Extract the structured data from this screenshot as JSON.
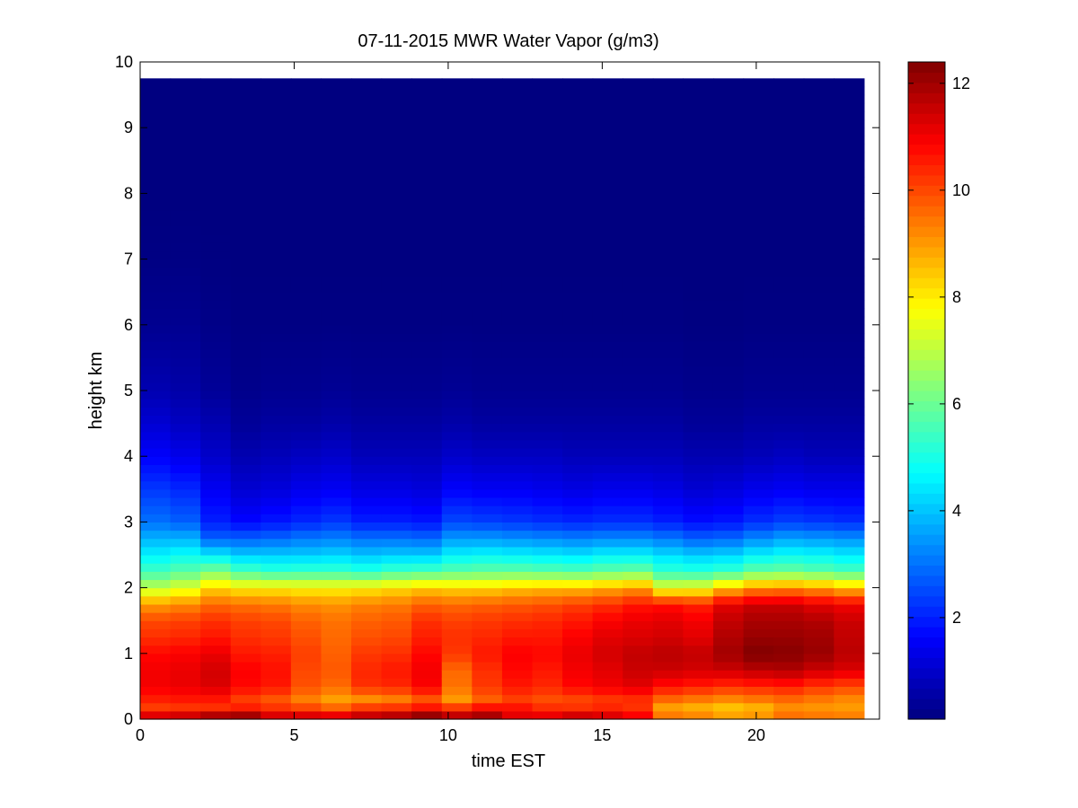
{
  "chart_data": {
    "type": "heatmap",
    "title": "07-11-2015 MWR Water Vapor (g/m3)",
    "xlabel": "time EST",
    "ylabel": "height km",
    "xlim": [
      0,
      24
    ],
    "ylim": [
      0,
      10
    ],
    "xticks": [
      0,
      5,
      10,
      15,
      20
    ],
    "yticks": [
      0,
      1,
      2,
      3,
      4,
      5,
      6,
      7,
      8,
      9,
      10
    ],
    "colorbar": {
      "colormap": "jet",
      "range": [
        0.1,
        12.4
      ],
      "ticks": [
        2,
        4,
        6,
        8,
        10,
        12
      ]
    },
    "grid": false,
    "time_cells": {
      "start": 0,
      "end": 23.5,
      "count": 24
    },
    "data_top_km": 9.75,
    "profile_levels_km": [
      0.0,
      0.1,
      0.2,
      0.3,
      0.5,
      0.75,
      1.0,
      1.25,
      1.5,
      1.75,
      2.0,
      2.25,
      2.5,
      2.75,
      3.0,
      3.5,
      4.0,
      4.5,
      5.0,
      6.0,
      7.0,
      8.0,
      9.0,
      9.75
    ],
    "profiles_g_m3": [
      [
        11.2,
        11.2,
        10.0,
        10.5,
        11.0,
        11.0,
        10.8,
        10.3,
        10.0,
        9.0,
        7.0,
        5.5,
        4.6,
        3.8,
        3.0,
        2.3,
        1.6,
        1.1,
        0.7,
        0.3,
        0.15,
        0.1,
        0.1,
        0.1
      ],
      [
        11.3,
        11.4,
        10.1,
        10.6,
        11.1,
        11.1,
        10.9,
        10.4,
        10.1,
        9.2,
        7.4,
        5.8,
        4.8,
        3.8,
        2.8,
        2.1,
        1.4,
        0.9,
        0.6,
        0.3,
        0.15,
        0.1,
        0.1,
        0.1
      ],
      [
        11.7,
        11.8,
        10.1,
        10.6,
        11.3,
        11.4,
        11.1,
        10.6,
        10.3,
        9.6,
        8.3,
        6.2,
        4.5,
        2.8,
        2.0,
        1.5,
        1.0,
        0.7,
        0.4,
        0.2,
        0.12,
        0.1,
        0.1,
        0.1
      ],
      [
        12.0,
        11.9,
        10.3,
        10.1,
        10.8,
        10.9,
        10.6,
        10.3,
        10.1,
        9.5,
        8.0,
        5.6,
        4.1,
        2.8,
        1.7,
        1.1,
        0.7,
        0.4,
        0.25,
        0.15,
        0.1,
        0.1,
        0.1,
        0.1
      ],
      [
        11.4,
        11.2,
        10.1,
        9.8,
        10.6,
        10.7,
        10.5,
        10.2,
        10.0,
        9.4,
        8.0,
        5.3,
        4.1,
        2.9,
        1.9,
        1.2,
        0.8,
        0.5,
        0.3,
        0.15,
        0.1,
        0.1,
        0.1,
        0.1
      ],
      [
        11.3,
        11.2,
        9.8,
        9.3,
        9.9,
        10.0,
        10.1,
        9.9,
        9.7,
        9.2,
        7.9,
        5.4,
        4.1,
        3.1,
        2.1,
        1.4,
        0.9,
        0.5,
        0.3,
        0.15,
        0.1,
        0.1,
        0.1,
        0.1
      ],
      [
        11.2,
        11.0,
        9.4,
        8.9,
        9.6,
        9.8,
        9.7,
        9.6,
        9.5,
        9.1,
        7.9,
        5.4,
        4.2,
        3.2,
        2.3,
        1.5,
        1.0,
        0.6,
        0.35,
        0.15,
        0.1,
        0.1,
        0.1,
        0.1
      ],
      [
        11.6,
        11.4,
        9.9,
        9.1,
        10.3,
        10.4,
        10.2,
        9.9,
        9.7,
        9.3,
        8.0,
        5.2,
        4.0,
        3.0,
        2.0,
        1.3,
        0.8,
        0.5,
        0.3,
        0.15,
        0.1,
        0.1,
        0.1,
        0.1
      ],
      [
        11.8,
        11.6,
        10.0,
        9.3,
        10.4,
        10.6,
        10.3,
        10.0,
        9.8,
        9.4,
        8.2,
        5.5,
        4.1,
        3.0,
        2.0,
        1.3,
        0.8,
        0.5,
        0.3,
        0.15,
        0.1,
        0.1,
        0.1,
        0.1
      ],
      [
        12.2,
        12.0,
        10.4,
        9.8,
        10.9,
        11.0,
        10.8,
        10.5,
        10.3,
        9.7,
        8.4,
        5.6,
        4.1,
        2.9,
        1.9,
        1.2,
        0.8,
        0.5,
        0.3,
        0.15,
        0.1,
        0.1,
        0.1,
        0.1
      ],
      [
        11.7,
        11.5,
        9.9,
        9.0,
        9.5,
        9.6,
        10.2,
        10.3,
        10.1,
        9.6,
        8.3,
        5.8,
        4.6,
        3.5,
        2.5,
        1.6,
        1.0,
        0.6,
        0.35,
        0.15,
        0.1,
        0.1,
        0.1,
        0.1
      ],
      [
        12.0,
        11.8,
        10.5,
        9.7,
        10.2,
        10.3,
        10.6,
        10.4,
        10.2,
        9.7,
        8.3,
        5.9,
        4.7,
        3.5,
        2.4,
        1.5,
        0.9,
        0.5,
        0.3,
        0.15,
        0.1,
        0.1,
        0.1,
        0.1
      ],
      [
        11.4,
        11.0,
        10.6,
        10.1,
        10.6,
        10.8,
        10.9,
        10.6,
        10.3,
        9.8,
        8.5,
        5.9,
        4.6,
        3.4,
        2.3,
        1.5,
        0.9,
        0.5,
        0.3,
        0.15,
        0.1,
        0.1,
        0.1,
        0.1
      ],
      [
        11.2,
        11.0,
        10.2,
        9.9,
        10.4,
        10.6,
        10.8,
        10.6,
        10.4,
        9.9,
        8.6,
        5.8,
        4.5,
        3.3,
        2.2,
        1.4,
        0.9,
        0.5,
        0.3,
        0.15,
        0.1,
        0.1,
        0.1,
        0.1
      ],
      [
        11.5,
        11.3,
        10.1,
        10.0,
        10.8,
        11.0,
        11.1,
        10.9,
        10.6,
        10.1,
        8.6,
        5.7,
        4.4,
        3.2,
        2.1,
        1.3,
        0.8,
        0.5,
        0.3,
        0.15,
        0.1,
        0.1,
        0.1,
        0.1
      ],
      [
        11.3,
        11.2,
        10.3,
        10.2,
        11.0,
        11.2,
        11.4,
        11.2,
        10.9,
        10.3,
        8.8,
        5.9,
        4.6,
        3.3,
        2.2,
        1.4,
        0.8,
        0.5,
        0.3,
        0.15,
        0.1,
        0.1,
        0.1,
        0.1
      ],
      [
        11.0,
        10.8,
        10.2,
        10.3,
        11.2,
        11.5,
        11.6,
        11.3,
        11.1,
        10.6,
        9.0,
        6.0,
        4.6,
        3.3,
        2.2,
        1.4,
        0.8,
        0.5,
        0.3,
        0.15,
        0.1,
        0.1,
        0.1,
        0.1
      ],
      [
        10.3,
        8.8,
        9.0,
        9.6,
        10.7,
        11.5,
        11.7,
        11.4,
        11.2,
        10.7,
        7.5,
        5.3,
        4.3,
        3.1,
        2.0,
        1.3,
        0.8,
        0.5,
        0.3,
        0.15,
        0.1,
        0.1,
        0.1,
        0.1
      ],
      [
        10.2,
        8.6,
        8.8,
        9.4,
        10.5,
        11.4,
        11.6,
        11.2,
        11.0,
        10.5,
        7.6,
        5.2,
        4.1,
        2.8,
        1.8,
        1.1,
        0.7,
        0.4,
        0.25,
        0.12,
        0.1,
        0.1,
        0.1,
        0.1
      ],
      [
        10.0,
        8.2,
        8.6,
        9.2,
        10.3,
        11.5,
        12.0,
        11.8,
        11.6,
        11.2,
        8.5,
        5.4,
        4.2,
        2.9,
        1.9,
        1.2,
        0.7,
        0.4,
        0.25,
        0.12,
        0.1,
        0.1,
        0.1,
        0.1
      ],
      [
        10.0,
        8.4,
        8.8,
        9.4,
        10.4,
        11.7,
        12.4,
        12.1,
        11.9,
        11.5,
        9.1,
        5.9,
        4.6,
        3.3,
        2.2,
        1.4,
        0.8,
        0.5,
        0.3,
        0.15,
        0.1,
        0.1,
        0.1,
        0.1
      ],
      [
        10.3,
        9.0,
        9.2,
        9.6,
        10.5,
        11.8,
        12.3,
        12.1,
        11.9,
        11.5,
        9.2,
        6.0,
        4.8,
        3.6,
        2.4,
        1.5,
        0.9,
        0.5,
        0.3,
        0.15,
        0.1,
        0.1,
        0.1,
        0.1
      ],
      [
        10.0,
        9.0,
        9.1,
        9.4,
        10.2,
        11.5,
        12.1,
        12.0,
        11.8,
        11.2,
        9.0,
        5.8,
        4.7,
        3.5,
        2.3,
        1.4,
        0.8,
        0.5,
        0.3,
        0.15,
        0.1,
        0.1,
        0.1,
        0.1
      ],
      [
        9.8,
        9.0,
        9.0,
        9.2,
        10.0,
        11.3,
        11.7,
        11.6,
        11.5,
        11.0,
        8.6,
        5.6,
        4.5,
        3.4,
        2.2,
        1.4,
        0.8,
        0.5,
        0.3,
        0.15,
        0.1,
        0.1,
        0.1,
        0.1
      ]
    ]
  }
}
